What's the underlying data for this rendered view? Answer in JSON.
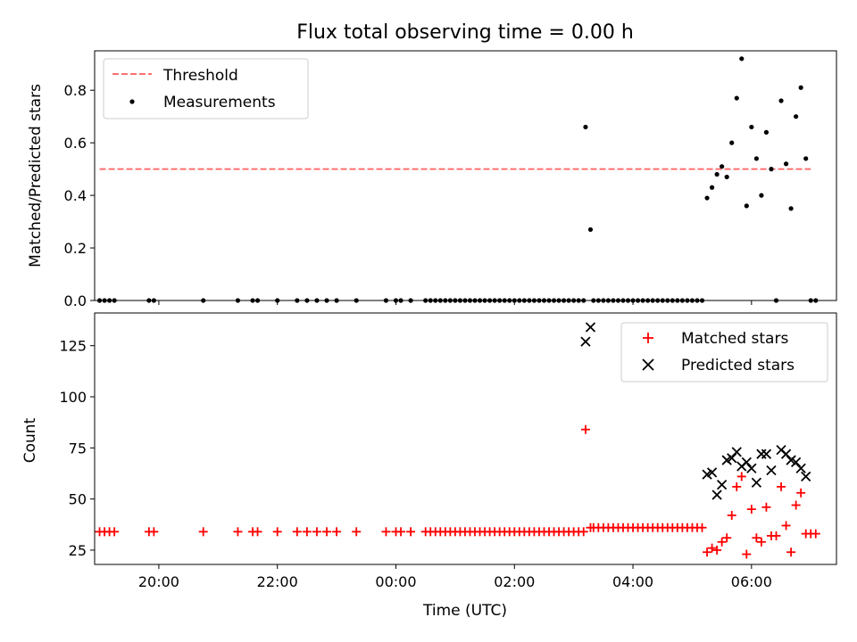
{
  "chart_data": [
    {
      "type": "scatter",
      "title": "Flux total observing time = 0.00 h",
      "xlabel": "",
      "ylabel": "Matched/Predicted stars",
      "xlim": [
        "18:55",
        "07:26"
      ],
      "ylim": [
        0,
        0.95
      ],
      "yticks": [
        "0.0",
        "0.2",
        "0.4",
        "0.6",
        "0.8"
      ],
      "grid": false,
      "legend_position": "upper-left",
      "threshold": {
        "name": "Threshold",
        "value": 0.5,
        "color": "#ff7070",
        "x_range": [
          "19:00",
          "07:00"
        ]
      },
      "series": [
        {
          "name": "Measurements",
          "color": "#000000",
          "marker": "dot",
          "points": [
            [
              "19:00",
              0
            ],
            [
              "19:05",
              0
            ],
            [
              "19:10",
              0
            ],
            [
              "19:15",
              0
            ],
            [
              "19:50",
              0
            ],
            [
              "19:55",
              0
            ],
            [
              "20:45",
              0
            ],
            [
              "21:20",
              0
            ],
            [
              "21:35",
              0
            ],
            [
              "21:40",
              0
            ],
            [
              "22:00",
              0
            ],
            [
              "22:20",
              0
            ],
            [
              "22:30",
              0
            ],
            [
              "22:40",
              0
            ],
            [
              "22:50",
              0
            ],
            [
              "23:00",
              0
            ],
            [
              "23:20",
              0
            ],
            [
              "23:50",
              0
            ],
            [
              "00:00",
              0
            ],
            [
              "00:05",
              0
            ],
            [
              "00:15",
              0
            ],
            [
              "00:30",
              0
            ],
            [
              "00:35",
              0
            ],
            [
              "00:40",
              0
            ],
            [
              "00:45",
              0
            ],
            [
              "00:50",
              0
            ],
            [
              "00:55",
              0
            ],
            [
              "01:00",
              0
            ],
            [
              "01:05",
              0
            ],
            [
              "01:10",
              0
            ],
            [
              "01:15",
              0
            ],
            [
              "01:20",
              0
            ],
            [
              "01:25",
              0
            ],
            [
              "01:30",
              0
            ],
            [
              "01:35",
              0
            ],
            [
              "01:40",
              0
            ],
            [
              "01:45",
              0
            ],
            [
              "01:50",
              0
            ],
            [
              "01:55",
              0
            ],
            [
              "02:00",
              0
            ],
            [
              "02:05",
              0
            ],
            [
              "02:10",
              0
            ],
            [
              "02:15",
              0
            ],
            [
              "02:20",
              0
            ],
            [
              "02:25",
              0
            ],
            [
              "02:30",
              0
            ],
            [
              "02:35",
              0
            ],
            [
              "02:40",
              0
            ],
            [
              "02:45",
              0
            ],
            [
              "02:50",
              0
            ],
            [
              "02:55",
              0
            ],
            [
              "03:00",
              0
            ],
            [
              "03:05",
              0
            ],
            [
              "03:10",
              0
            ],
            [
              "03:12",
              0.66
            ],
            [
              "03:17",
              0.27
            ],
            [
              "03:20",
              0
            ],
            [
              "03:25",
              0
            ],
            [
              "03:30",
              0
            ],
            [
              "03:35",
              0
            ],
            [
              "03:40",
              0
            ],
            [
              "03:45",
              0
            ],
            [
              "03:50",
              0
            ],
            [
              "03:55",
              0
            ],
            [
              "04:00",
              0
            ],
            [
              "04:05",
              0
            ],
            [
              "04:10",
              0
            ],
            [
              "04:15",
              0
            ],
            [
              "04:20",
              0
            ],
            [
              "04:25",
              0
            ],
            [
              "04:30",
              0
            ],
            [
              "04:35",
              0
            ],
            [
              "04:40",
              0
            ],
            [
              "04:45",
              0
            ],
            [
              "04:50",
              0
            ],
            [
              "04:55",
              0
            ],
            [
              "05:00",
              0
            ],
            [
              "05:05",
              0
            ],
            [
              "05:10",
              0
            ],
            [
              "05:15",
              0.39
            ],
            [
              "05:20",
              0.43
            ],
            [
              "05:25",
              0.48
            ],
            [
              "05:30",
              0.51
            ],
            [
              "05:35",
              0.47
            ],
            [
              "05:40",
              0.6
            ],
            [
              "05:45",
              0.77
            ],
            [
              "05:50",
              0.92
            ],
            [
              "05:55",
              0.36
            ],
            [
              "06:00",
              0.66
            ],
            [
              "06:05",
              0.54
            ],
            [
              "06:10",
              0.4
            ],
            [
              "06:15",
              0.64
            ],
            [
              "06:20",
              0.5
            ],
            [
              "06:25",
              0.0
            ],
            [
              "06:30",
              0.76
            ],
            [
              "06:35",
              0.52
            ],
            [
              "06:40",
              0.35
            ],
            [
              "06:45",
              0.7
            ],
            [
              "06:50",
              0.81
            ],
            [
              "06:55",
              0.54
            ],
            [
              "07:00",
              0.0
            ],
            [
              "07:05",
              0.0
            ]
          ]
        }
      ]
    },
    {
      "type": "scatter",
      "title": "",
      "xlabel": "Time (UTC)",
      "ylabel": "Count",
      "xlim": [
        "18:55",
        "07:26"
      ],
      "ylim": [
        18,
        141
      ],
      "xticks": [
        "20:00",
        "22:00",
        "00:00",
        "02:00",
        "04:00",
        "06:00"
      ],
      "yticks": [
        "25",
        "50",
        "75",
        "100",
        "125"
      ],
      "grid": false,
      "legend_position": "upper-right",
      "series": [
        {
          "name": "Matched stars",
          "color": "#ff0000",
          "marker": "plus",
          "points": [
            [
              "19:00",
              34
            ],
            [
              "19:05",
              34
            ],
            [
              "19:10",
              34
            ],
            [
              "19:15",
              34
            ],
            [
              "19:50",
              34
            ],
            [
              "19:55",
              34
            ],
            [
              "20:45",
              34
            ],
            [
              "21:20",
              34
            ],
            [
              "21:35",
              34
            ],
            [
              "21:40",
              34
            ],
            [
              "22:00",
              34
            ],
            [
              "22:20",
              34
            ],
            [
              "22:30",
              34
            ],
            [
              "22:40",
              34
            ],
            [
              "22:50",
              34
            ],
            [
              "23:00",
              34
            ],
            [
              "23:20",
              34
            ],
            [
              "23:50",
              34
            ],
            [
              "00:00",
              34
            ],
            [
              "00:05",
              34
            ],
            [
              "00:15",
              34
            ],
            [
              "00:30",
              34
            ],
            [
              "00:35",
              34
            ],
            [
              "00:40",
              34
            ],
            [
              "00:45",
              34
            ],
            [
              "00:50",
              34
            ],
            [
              "00:55",
              34
            ],
            [
              "01:00",
              34
            ],
            [
              "01:05",
              34
            ],
            [
              "01:10",
              34
            ],
            [
              "01:15",
              34
            ],
            [
              "01:20",
              34
            ],
            [
              "01:25",
              34
            ],
            [
              "01:30",
              34
            ],
            [
              "01:35",
              34
            ],
            [
              "01:40",
              34
            ],
            [
              "01:45",
              34
            ],
            [
              "01:50",
              34
            ],
            [
              "01:55",
              34
            ],
            [
              "02:00",
              34
            ],
            [
              "02:05",
              34
            ],
            [
              "02:10",
              34
            ],
            [
              "02:15",
              34
            ],
            [
              "02:20",
              34
            ],
            [
              "02:25",
              34
            ],
            [
              "02:30",
              34
            ],
            [
              "02:35",
              34
            ],
            [
              "02:40",
              34
            ],
            [
              "02:45",
              34
            ],
            [
              "02:50",
              34
            ],
            [
              "02:55",
              34
            ],
            [
              "03:00",
              34
            ],
            [
              "03:05",
              34
            ],
            [
              "03:10",
              34
            ],
            [
              "03:12",
              84
            ],
            [
              "03:17",
              36
            ],
            [
              "03:20",
              36
            ],
            [
              "03:25",
              36
            ],
            [
              "03:30",
              36
            ],
            [
              "03:35",
              36
            ],
            [
              "03:40",
              36
            ],
            [
              "03:45",
              36
            ],
            [
              "03:50",
              36
            ],
            [
              "03:55",
              36
            ],
            [
              "04:00",
              36
            ],
            [
              "04:05",
              36
            ],
            [
              "04:10",
              36
            ],
            [
              "04:15",
              36
            ],
            [
              "04:20",
              36
            ],
            [
              "04:25",
              36
            ],
            [
              "04:30",
              36
            ],
            [
              "04:35",
              36
            ],
            [
              "04:40",
              36
            ],
            [
              "04:45",
              36
            ],
            [
              "04:50",
              36
            ],
            [
              "04:55",
              36
            ],
            [
              "05:00",
              36
            ],
            [
              "05:05",
              36
            ],
            [
              "05:10",
              36
            ],
            [
              "05:15",
              24
            ],
            [
              "05:20",
              26
            ],
            [
              "05:25",
              25
            ],
            [
              "05:30",
              29
            ],
            [
              "05:35",
              31
            ],
            [
              "05:40",
              42
            ],
            [
              "05:45",
              56
            ],
            [
              "05:50",
              61
            ],
            [
              "05:55",
              23
            ],
            [
              "06:00",
              45
            ],
            [
              "06:05",
              31
            ],
            [
              "06:10",
              29
            ],
            [
              "06:15",
              46
            ],
            [
              "06:20",
              32
            ],
            [
              "06:25",
              32
            ],
            [
              "06:30",
              56
            ],
            [
              "06:35",
              37
            ],
            [
              "06:40",
              24
            ],
            [
              "06:45",
              47
            ],
            [
              "06:50",
              53
            ],
            [
              "06:55",
              33
            ],
            [
              "07:00",
              33
            ],
            [
              "07:05",
              33
            ]
          ]
        },
        {
          "name": "Predicted stars",
          "color": "#000000",
          "marker": "x",
          "points": [
            [
              "03:12",
              127
            ],
            [
              "03:17",
              134
            ],
            [
              "05:15",
              62
            ],
            [
              "05:20",
              63
            ],
            [
              "05:25",
              52
            ],
            [
              "05:30",
              57
            ],
            [
              "05:35",
              69
            ],
            [
              "05:40",
              70
            ],
            [
              "05:45",
              73
            ],
            [
              "05:50",
              66
            ],
            [
              "05:55",
              68
            ],
            [
              "06:00",
              65
            ],
            [
              "06:05",
              58
            ],
            [
              "06:10",
              72
            ],
            [
              "06:15",
              72
            ],
            [
              "06:20",
              64
            ],
            [
              "06:30",
              74
            ],
            [
              "06:35",
              72
            ],
            [
              "06:40",
              69
            ],
            [
              "06:45",
              68
            ],
            [
              "06:50",
              65
            ],
            [
              "06:55",
              61
            ]
          ]
        }
      ]
    }
  ]
}
